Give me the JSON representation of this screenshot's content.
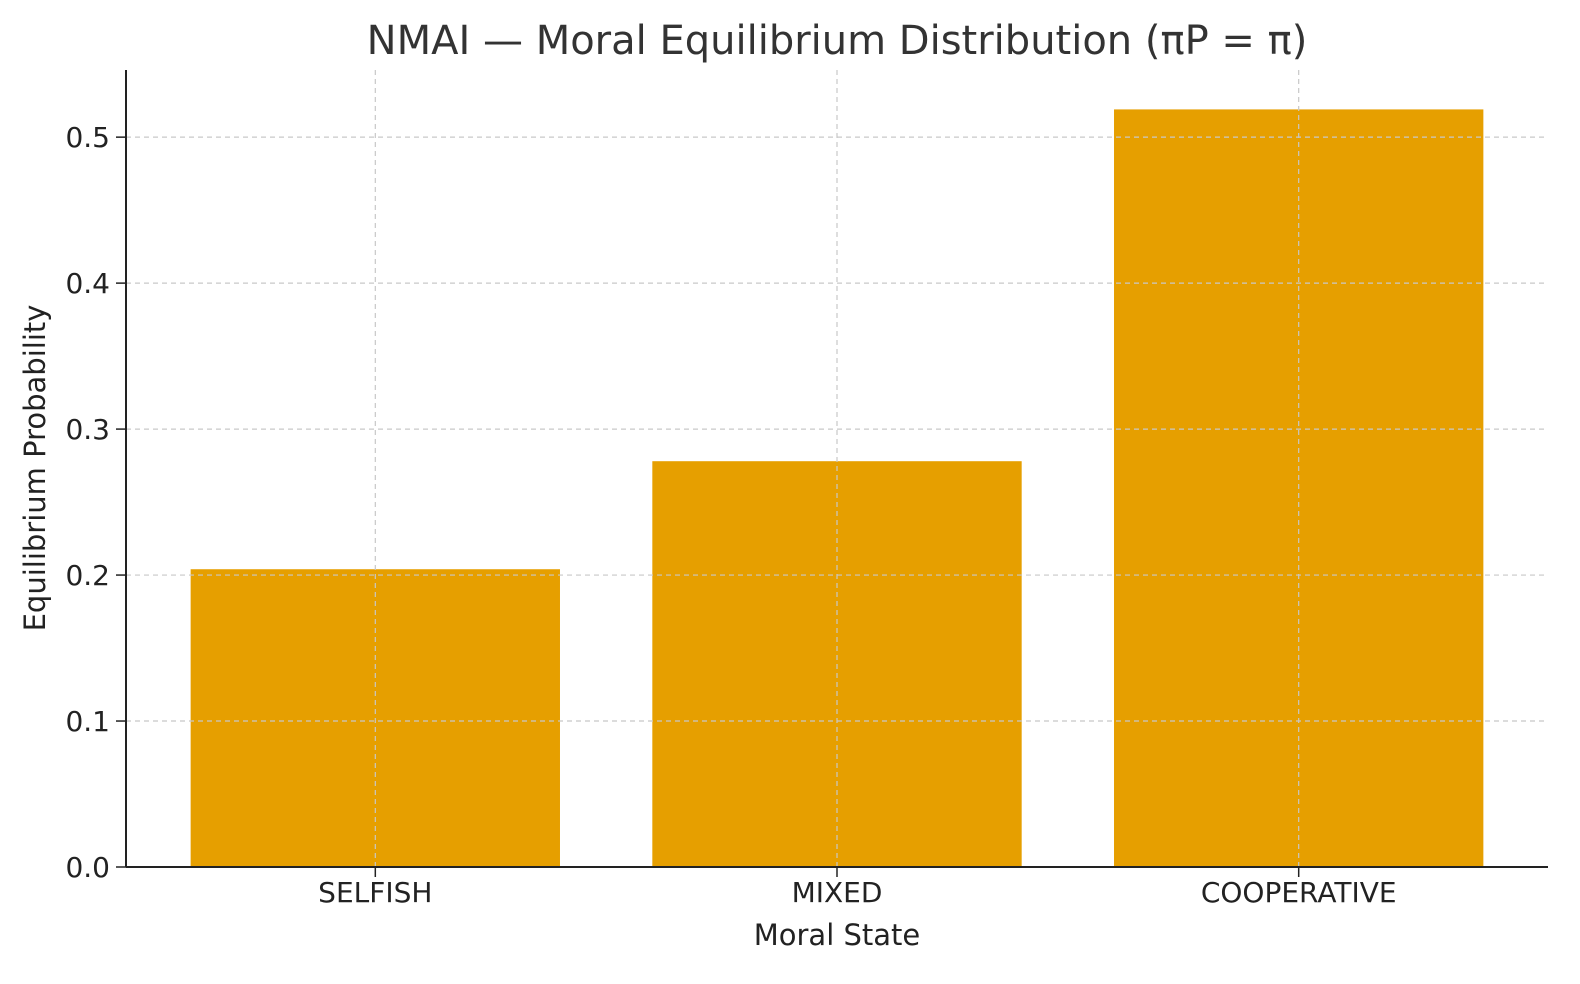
{
  "chart_data": {
    "type": "bar",
    "title": "NMAI — Moral Equilibrium Distribution (πP = π)",
    "xlabel": "Moral State",
    "ylabel": "Equilibrium Probability",
    "categories": [
      "SELFISH",
      "MIXED",
      "COOPERATIVE"
    ],
    "values": [
      0.204,
      0.278,
      0.519
    ],
    "ylim": [
      0,
      0.546
    ],
    "yticks": [
      0.0,
      0.1,
      0.2,
      0.3,
      0.4,
      0.5
    ],
    "ytick_labels": [
      "0.0",
      "0.1",
      "0.2",
      "0.3",
      "0.4",
      "0.5"
    ],
    "grid": true,
    "colors": {
      "bar": "#e69f00",
      "grid": "#c8c8c8",
      "axis": "#222222",
      "title": "#333333"
    }
  }
}
